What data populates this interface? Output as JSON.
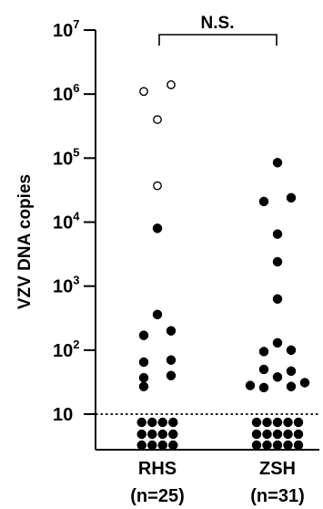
{
  "chart_data": {
    "type": "scatter",
    "ylabel": "VZV DNA copies",
    "y_scale": "log",
    "ylim": [
      3,
      10000000
    ],
    "y_ticks": [
      {
        "value": 10,
        "base": "10",
        "exp": ""
      },
      {
        "value": 100,
        "base": "10",
        "exp": "2"
      },
      {
        "value": 1000,
        "base": "10",
        "exp": "3"
      },
      {
        "value": 10000,
        "base": "10",
        "exp": "4"
      },
      {
        "value": 100000,
        "base": "10",
        "exp": "5"
      },
      {
        "value": 1000000,
        "base": "10",
        "exp": "6"
      },
      {
        "value": 10000000,
        "base": "10",
        "exp": "7"
      }
    ],
    "threshold": 10,
    "significance_label": "N.S.",
    "categories": [
      {
        "label": "RHS",
        "n_label": "(n=25)"
      },
      {
        "label": "ZSH",
        "n_label": "(n=31)"
      }
    ],
    "series": [
      {
        "category": "RHS",
        "detected": [
          {
            "y": 1400000,
            "open": true,
            "offset": 1
          },
          {
            "y": 1100000,
            "open": true,
            "offset": -1
          },
          {
            "y": 400000,
            "open": true,
            "offset": 0
          },
          {
            "y": 37000,
            "open": true,
            "offset": 0
          },
          {
            "y": 8000,
            "open": false,
            "offset": 0
          },
          {
            "y": 360,
            "open": false,
            "offset": 0
          },
          {
            "y": 200,
            "open": false,
            "offset": 1
          },
          {
            "y": 170,
            "open": false,
            "offset": -1
          },
          {
            "y": 70,
            "open": false,
            "offset": 1
          },
          {
            "y": 65,
            "open": false,
            "offset": -1
          },
          {
            "y": 40,
            "open": false,
            "offset": 1
          },
          {
            "y": 37,
            "open": false,
            "offset": -1
          },
          {
            "y": 27,
            "open": false,
            "offset": -1
          }
        ],
        "below_detection_count": 12
      },
      {
        "category": "ZSH",
        "detected": [
          {
            "y": 85000,
            "open": false,
            "offset": 0
          },
          {
            "y": 24000,
            "open": false,
            "offset": 1
          },
          {
            "y": 21000,
            "open": false,
            "offset": -1
          },
          {
            "y": 6500,
            "open": false,
            "offset": 0
          },
          {
            "y": 2400,
            "open": false,
            "offset": 0
          },
          {
            "y": 630,
            "open": false,
            "offset": 0
          },
          {
            "y": 130,
            "open": false,
            "offset": 0
          },
          {
            "y": 100,
            "open": false,
            "offset": 1
          },
          {
            "y": 95,
            "open": false,
            "offset": -1
          },
          {
            "y": 50,
            "open": false,
            "offset": -1
          },
          {
            "y": 47,
            "open": false,
            "offset": 1
          },
          {
            "y": 38,
            "open": false,
            "offset": 0
          },
          {
            "y": 31,
            "open": false,
            "offset": 2
          },
          {
            "y": 28,
            "open": false,
            "offset": -2
          },
          {
            "y": 27,
            "open": false,
            "offset": 1
          },
          {
            "y": 26,
            "open": false,
            "offset": -1
          }
        ],
        "below_detection_count": 15
      }
    ]
  }
}
